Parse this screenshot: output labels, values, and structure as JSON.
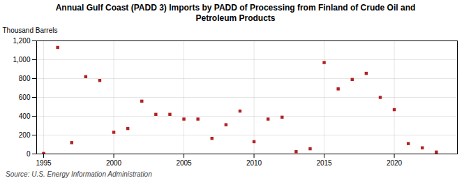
{
  "chart_data": {
    "type": "scatter",
    "title": "Annual Gulf Coast (PADD 3) Imports by PADD of Processing from Finland of Crude Oil and\nPetroleum Products",
    "ylabel": "Thousand Barrels",
    "annotations": [
      "Source: U.S. Energy Information Administration"
    ],
    "color": "#b22222",
    "marker": "square",
    "x": [
      1995,
      1996,
      1997,
      1998,
      1999,
      2000,
      2001,
      2002,
      2003,
      2004,
      2005,
      2006,
      2007,
      2008,
      2009,
      2010,
      2011,
      2012,
      2013,
      2014,
      2015,
      2016,
      2017,
      2018,
      2019,
      2020,
      2021,
      2022,
      2023
    ],
    "values": [
      5,
      1130,
      120,
      820,
      780,
      230,
      270,
      560,
      420,
      420,
      370,
      370,
      165,
      310,
      455,
      130,
      370,
      390,
      25,
      55,
      970,
      690,
      790,
      855,
      600,
      470,
      110,
      65,
      20
    ],
    "xlim": [
      1994.5,
      2024.5
    ],
    "xticks": [
      1995,
      2000,
      2005,
      2010,
      2015,
      2020
    ],
    "ylim": [
      0,
      1200
    ],
    "yticks": [
      0,
      200,
      400,
      600,
      800,
      {
        "value": 1000,
        "label": "1,000"
      },
      {
        "value": 1200,
        "label": "1,200"
      }
    ],
    "grid": true
  }
}
